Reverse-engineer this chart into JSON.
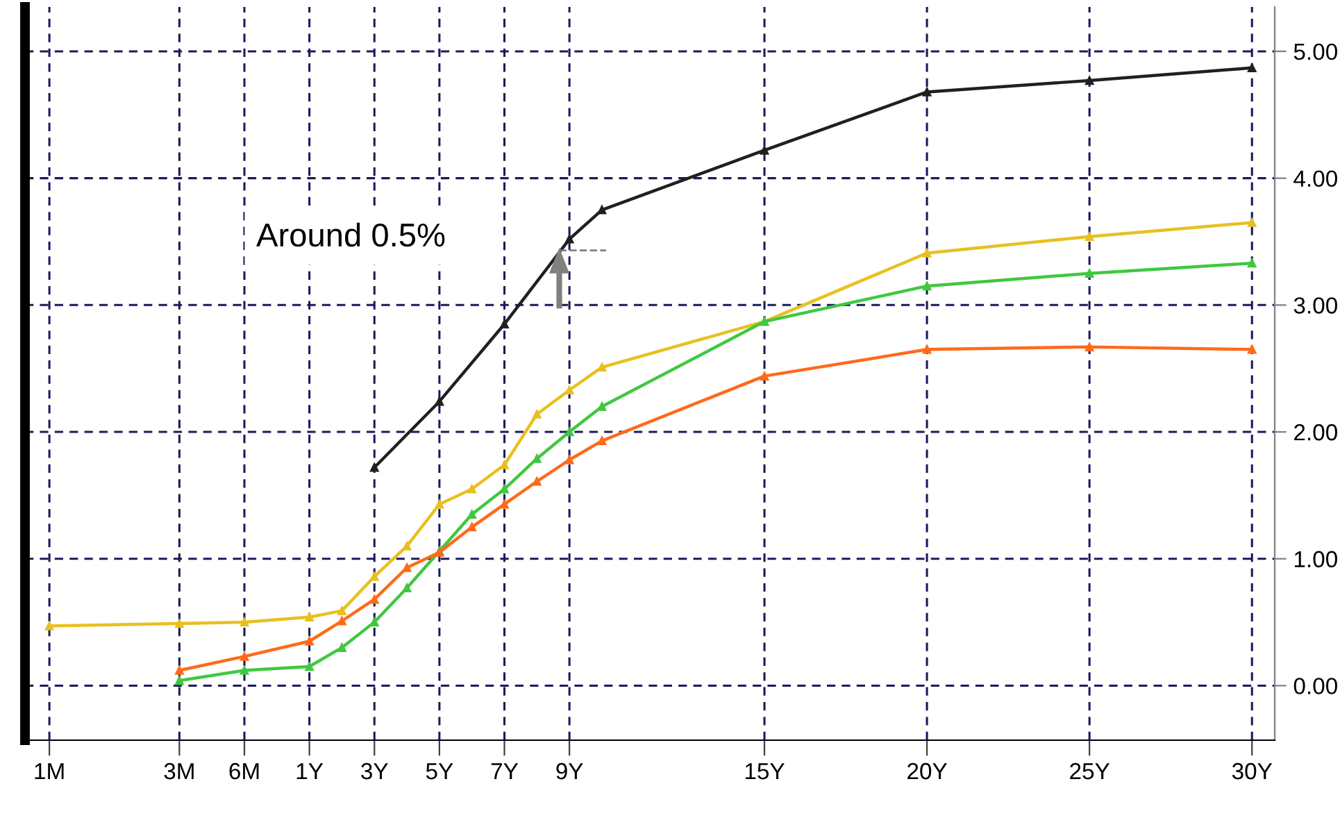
{
  "chart_data": {
    "type": "line",
    "categories": [
      "1M",
      null,
      null,
      null,
      "3M",
      null,
      "6M",
      null,
      "1Y",
      null,
      "3Y",
      null,
      "5Y",
      null,
      "7Y",
      null,
      "9Y",
      null,
      null,
      null,
      null,
      null,
      "15Y",
      null,
      null,
      null,
      null,
      "20Y",
      null,
      null,
      null,
      null,
      "25Y",
      null,
      null,
      null,
      null,
      "30Y"
    ],
    "ylim": [
      -0.43,
      5.35
    ],
    "yticks": [
      {
        "value": 0,
        "label": "0.00"
      },
      {
        "value": 1,
        "label": "1.00"
      },
      {
        "value": 2,
        "label": "2.00"
      },
      {
        "value": 3,
        "label": "3.00"
      },
      {
        "value": 4,
        "label": "4.00"
      },
      {
        "value": 5,
        "label": "5.00"
      }
    ],
    "grid": true,
    "marker": "triangle",
    "line_style": "solid",
    "series": [
      {
        "color": "#202020",
        "values": [
          null,
          null,
          null,
          null,
          null,
          null,
          null,
          null,
          null,
          null,
          1.72,
          null,
          2.24,
          null,
          2.85,
          null,
          3.52,
          3.75,
          null,
          null,
          null,
          null,
          4.22,
          null,
          null,
          null,
          null,
          4.68,
          null,
          null,
          null,
          null,
          4.77,
          null,
          null,
          null,
          null,
          4.87
        ]
      },
      {
        "color": "#e8c020",
        "values": [
          0.47,
          null,
          null,
          null,
          0.49,
          null,
          0.5,
          null,
          0.54,
          0.59,
          0.86,
          1.1,
          1.43,
          1.55,
          1.74,
          2.14,
          2.33,
          2.51,
          null,
          null,
          null,
          null,
          2.87,
          null,
          null,
          null,
          null,
          3.41,
          null,
          null,
          null,
          null,
          3.54,
          null,
          null,
          null,
          null,
          3.65
        ]
      },
      {
        "color": "#40c840",
        "values": [
          null,
          null,
          null,
          null,
          0.04,
          null,
          0.12,
          null,
          0.15,
          0.3,
          0.5,
          0.77,
          1.06,
          1.35,
          1.55,
          1.79,
          2.0,
          2.2,
          null,
          null,
          null,
          null,
          2.87,
          null,
          null,
          null,
          null,
          3.15,
          null,
          null,
          null,
          null,
          3.25,
          null,
          null,
          null,
          null,
          3.33
        ]
      },
      {
        "color": "#ff6a1a",
        "values": [
          null,
          null,
          null,
          null,
          0.12,
          null,
          0.23,
          null,
          0.35,
          0.51,
          0.68,
          0.93,
          1.05,
          1.25,
          1.43,
          1.61,
          1.78,
          1.93,
          null,
          null,
          null,
          null,
          2.44,
          null,
          null,
          null,
          null,
          2.65,
          null,
          null,
          null,
          null,
          2.67,
          null,
          null,
          null,
          null,
          2.65
        ]
      }
    ],
    "annotations": [
      "Around 0.5%"
    ]
  }
}
